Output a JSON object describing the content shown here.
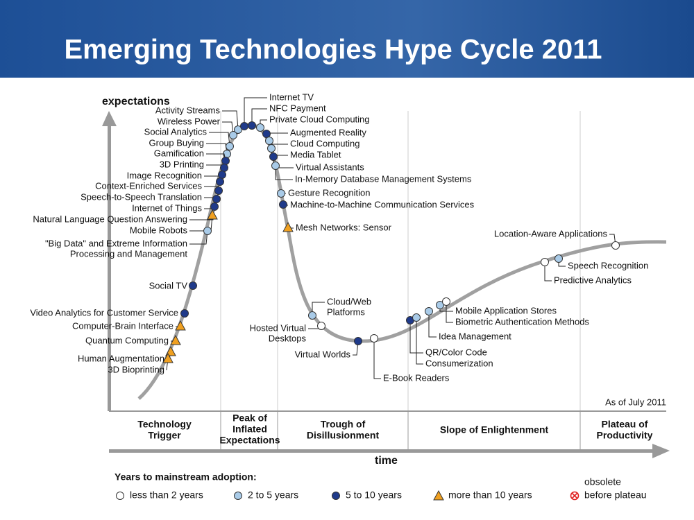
{
  "header": {
    "title": "Emerging Technologies Hype Cycle 2011"
  },
  "axes": {
    "y_label": "expectations",
    "x_label": "time"
  },
  "note": "As of July 2011",
  "phases": [
    {
      "lines": [
        "Technology",
        "Trigger"
      ]
    },
    {
      "lines": [
        "Peak of",
        "Inflated",
        "Expectations"
      ]
    },
    {
      "lines": [
        "Trough of",
        "Disillusionment"
      ]
    },
    {
      "lines": [
        "Slope of Enlightenment"
      ]
    },
    {
      "lines": [
        "Plateau of",
        "Productivity"
      ]
    }
  ],
  "legend": {
    "title": "Years to mainstream adoption:",
    "items": [
      {
        "lines": [
          "less than 2 years"
        ],
        "marker": "circle",
        "color": "#ffffff"
      },
      {
        "lines": [
          "2 to 5 years"
        ],
        "marker": "circle",
        "color": "#a9cbe8"
      },
      {
        "lines": [
          "5 to 10 years"
        ],
        "marker": "circle",
        "color": "#1f3a8a"
      },
      {
        "lines": [
          "more than 10 years"
        ],
        "marker": "triangle",
        "color": "#f0a020"
      },
      {
        "lines": [
          "obsolete",
          "before plateau"
        ],
        "marker": "cross",
        "color": "#e02020"
      }
    ]
  },
  "technologies": [
    {
      "lines": [
        "Activity Streams"
      ],
      "adoption": 1
    },
    {
      "lines": [
        "Wireless Power"
      ],
      "adoption": 1
    },
    {
      "lines": [
        "Social Analytics"
      ],
      "adoption": 1
    },
    {
      "lines": [
        "Group Buying"
      ],
      "adoption": 1
    },
    {
      "lines": [
        "Gamification"
      ],
      "adoption": 2
    },
    {
      "lines": [
        "3D Printing"
      ],
      "adoption": 2
    },
    {
      "lines": [
        "Image Recognition"
      ],
      "adoption": 2
    },
    {
      "lines": [
        "Context-Enriched Services"
      ],
      "adoption": 2
    },
    {
      "lines": [
        "Speech-to-Speech Translation"
      ],
      "adoption": 2
    },
    {
      "lines": [
        "Internet of Things"
      ],
      "adoption": 2
    },
    {
      "lines": [
        "Natural Language Question Answering"
      ],
      "adoption": 2
    },
    {
      "lines": [
        "Mobile Robots"
      ],
      "adoption": 3
    },
    {
      "lines": [
        "\"Big Data\" and Extreme Information",
        "Processing and Management"
      ],
      "adoption": 1
    },
    {
      "lines": [
        "Social TV"
      ],
      "adoption": 2
    },
    {
      "lines": [
        "Video Analytics for Customer Service"
      ],
      "adoption": 2
    },
    {
      "lines": [
        "Computer-Brain Interface"
      ],
      "adoption": 3
    },
    {
      "lines": [
        "Quantum Computing"
      ],
      "adoption": 3
    },
    {
      "lines": [
        "Human Augmentation"
      ],
      "adoption": 3
    },
    {
      "lines": [
        "3D Bioprinting"
      ],
      "adoption": 3
    },
    {
      "lines": [
        "Internet TV"
      ],
      "adoption": 2
    },
    {
      "lines": [
        "NFC Payment"
      ],
      "adoption": 2
    },
    {
      "lines": [
        "Private Cloud Computing"
      ],
      "adoption": 1
    },
    {
      "lines": [
        "Augmented Reality"
      ],
      "adoption": 2
    },
    {
      "lines": [
        "Cloud Computing"
      ],
      "adoption": 1
    },
    {
      "lines": [
        "Media Tablet"
      ],
      "adoption": 1
    },
    {
      "lines": [
        "Virtual Assistants"
      ],
      "adoption": 2
    },
    {
      "lines": [
        "In-Memory Database Management Systems"
      ],
      "adoption": 1
    },
    {
      "lines": [
        "Gesture Recognition"
      ],
      "adoption": 1
    },
    {
      "lines": [
        "Machine-to-Machine Communication Services"
      ],
      "adoption": 2
    },
    {
      "lines": [
        "Mesh Networks: Sensor"
      ],
      "adoption": 3
    },
    {
      "lines": [
        "Cloud/Web",
        "Platforms"
      ],
      "adoption": 1
    },
    {
      "lines": [
        "Hosted Virtual",
        "Desktops"
      ],
      "adoption": 0
    },
    {
      "lines": [
        "Virtual Worlds"
      ],
      "adoption": 2
    },
    {
      "lines": [
        "E-Book Readers"
      ],
      "adoption": 0
    },
    {
      "lines": [
        "QR/Color Code"
      ],
      "adoption": 2
    },
    {
      "lines": [
        "Consumerization"
      ],
      "adoption": 1
    },
    {
      "lines": [
        "Idea Management"
      ],
      "adoption": 1
    },
    {
      "lines": [
        "Mobile Application Stores"
      ],
      "adoption": 1
    },
    {
      "lines": [
        "Biometric Authentication Methods"
      ],
      "adoption": 0
    },
    {
      "lines": [
        "Predictive Analytics"
      ],
      "adoption": 0
    },
    {
      "lines": [
        "Speech Recognition"
      ],
      "adoption": 1
    },
    {
      "lines": [
        "Location-Aware Applications"
      ],
      "adoption": 0
    }
  ]
}
